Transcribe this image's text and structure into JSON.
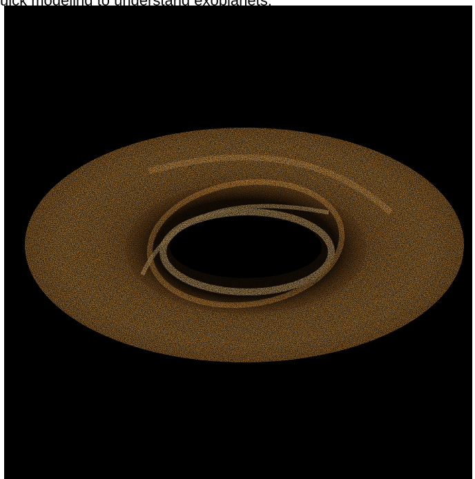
{
  "caption": {
    "text": "uick modeling to understand exoplanets."
  },
  "image": {
    "subject": "debris-disk-simulation",
    "background_color": "#000000",
    "disk_color": "#e9a54c",
    "highlight_color": "#ffd28a"
  }
}
